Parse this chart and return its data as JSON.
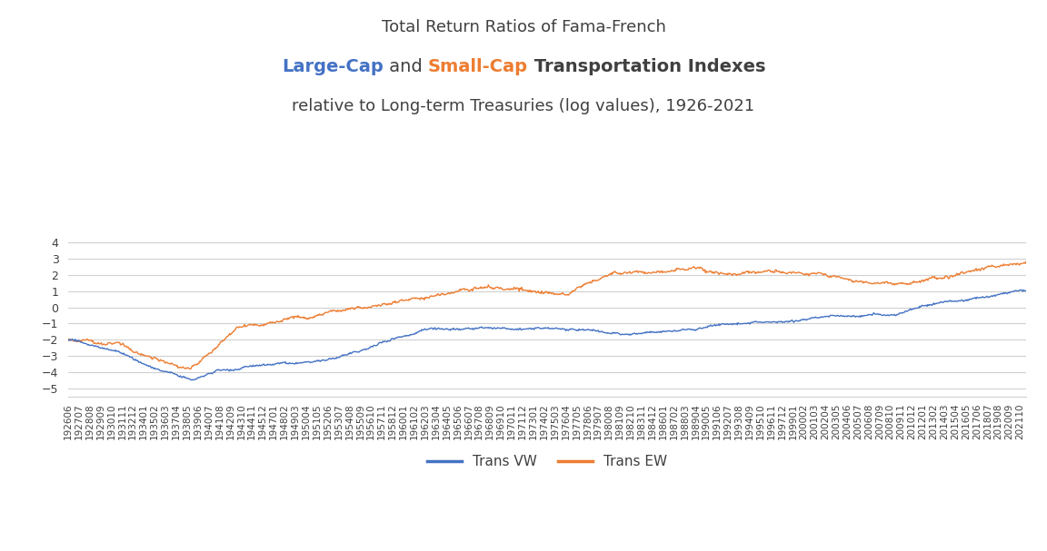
{
  "title_line1": "Total Return Ratios of Fama-French",
  "title_line2_part1": "Large-Cap",
  "title_line2_and": " and ",
  "title_line2_part2": "Small-Cap",
  "title_line2_end": " Transportation Indexes",
  "title_line3": "relative to Long-term Treasuries (log values), 1926-2021",
  "color_vw": "#4472C4",
  "color_ew": "#ED7D31",
  "color_title_gray": "#404040",
  "ylim": [
    -5.5,
    4.5
  ],
  "yticks": [
    -5,
    -4,
    -3,
    -2,
    -1,
    0,
    1,
    2,
    3,
    4
  ],
  "legend_labels": [
    "Trans VW",
    "Trans EW"
  ],
  "background_color": "#ffffff",
  "grid_color": "#d0d0d0",
  "vw_anchors_t": [
    0.0,
    0.052,
    0.075,
    0.1,
    0.13,
    0.155,
    0.175,
    0.22,
    0.28,
    0.34,
    0.38,
    0.42,
    0.5,
    0.58,
    0.63,
    0.68,
    0.72,
    0.78,
    0.82,
    0.86,
    0.9,
    0.95,
    1.0
  ],
  "vw_anchors_v": [
    -2.0,
    -2.5,
    -3.2,
    -3.7,
    -4.2,
    -3.7,
    -3.6,
    -3.3,
    -3.0,
    -1.8,
    -1.2,
    -1.1,
    -0.8,
    -1.2,
    -0.9,
    -0.5,
    -0.4,
    -0.35,
    -0.3,
    -0.2,
    0.3,
    0.7,
    1.0
  ],
  "ew_anchors_t": [
    0.0,
    0.05,
    0.073,
    0.1,
    0.127,
    0.155,
    0.175,
    0.22,
    0.28,
    0.32,
    0.36,
    0.4,
    0.43,
    0.48,
    0.52,
    0.57,
    0.62,
    0.68,
    0.73,
    0.78,
    0.82,
    0.86,
    0.9,
    0.95,
    1.0
  ],
  "ew_anchors_v": [
    -2.0,
    -2.3,
    -3.0,
    -3.5,
    -4.1,
    -2.8,
    -1.5,
    -1.0,
    -0.3,
    0.2,
    0.8,
    1.1,
    1.3,
    1.1,
    0.5,
    1.9,
    1.7,
    1.8,
    2.1,
    2.0,
    1.6,
    1.6,
    2.0,
    2.5,
    2.8
  ],
  "n_points": 1152,
  "tick_step": 13,
  "year_start": 1926,
  "month_start": 6
}
